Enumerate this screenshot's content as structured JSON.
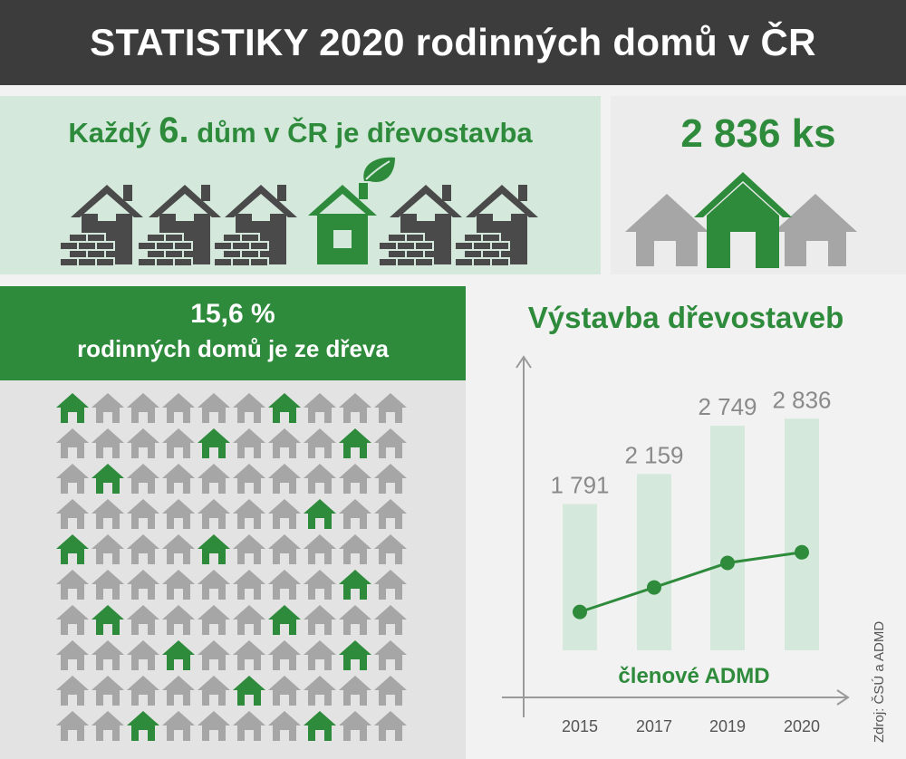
{
  "header": {
    "title": "STATISTIKY 2020 rodinných domů v ČR"
  },
  "every6": {
    "prefix": "Každý",
    "number": "6.",
    "suffix": "dům v ČR je dřevostavba"
  },
  "count": {
    "value": "2 836 ks"
  },
  "percent": {
    "value": "15,6 %",
    "label": "rodinných domů je ze dřeva"
  },
  "colors": {
    "green": "#2e8b3c",
    "gray_house": "#a6a6a6",
    "dark_house": "#4a4a4a",
    "bar": "#d5e8dc"
  },
  "grid": {
    "rows": 10,
    "cols": 10,
    "highlighted": [
      [
        0,
        0
      ],
      [
        0,
        6
      ],
      [
        1,
        4
      ],
      [
        1,
        8
      ],
      [
        2,
        1
      ],
      [
        3,
        7
      ],
      [
        4,
        0
      ],
      [
        4,
        4
      ],
      [
        5,
        8
      ],
      [
        6,
        1
      ],
      [
        6,
        6
      ],
      [
        7,
        3
      ],
      [
        7,
        8
      ],
      [
        8,
        5
      ],
      [
        9,
        2
      ],
      [
        9,
        7
      ]
    ]
  },
  "chart_data": {
    "type": "bar",
    "title": "Výstavba dřevostaveb",
    "categories": [
      "2015",
      "2017",
      "2019",
      "2020"
    ],
    "values": [
      1791,
      2159,
      2749,
      2836
    ],
    "value_labels": [
      "1 791",
      "2 159",
      "2 749",
      "2 836"
    ],
    "line_series": {
      "name": "členové ADMD",
      "values": [
        470,
        770,
        1070,
        1200
      ]
    },
    "ylim": [
      0,
      2950
    ]
  },
  "source": "Zdroj: ČSÚ a ADMD"
}
